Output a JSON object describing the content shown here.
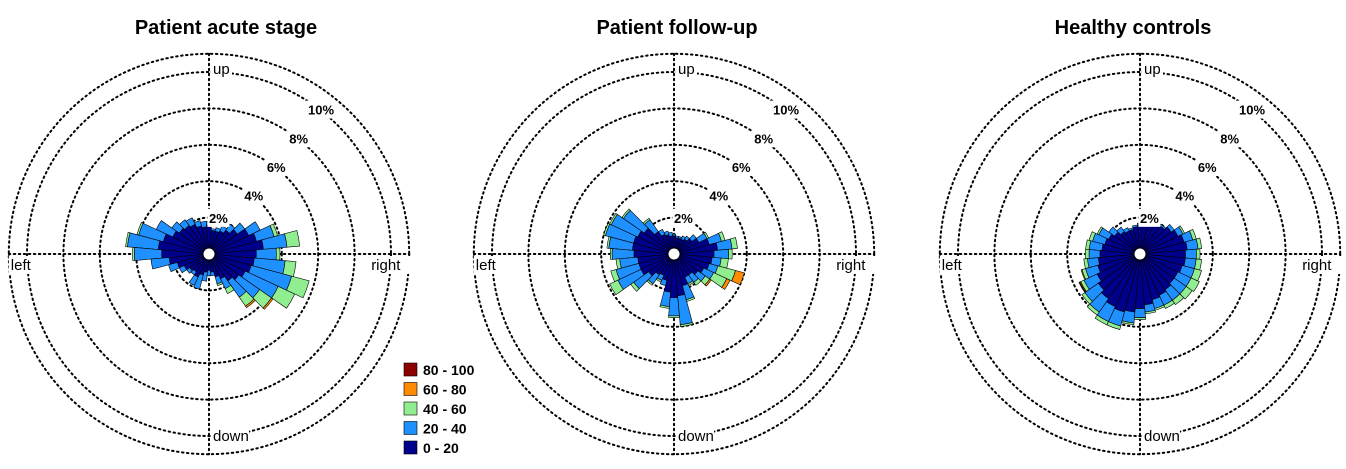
{
  "colors": {
    "c0_20": "#00008b",
    "c20_40": "#1e90ff",
    "c40_60": "#90ee90",
    "c60_80": "#ff8c00",
    "c80_100": "#8b0000"
  },
  "legend": [
    {
      "label": "80 - 100",
      "color": "#8b0000"
    },
    {
      "label": "60 - 80",
      "color": "#ff8c00"
    },
    {
      "label": "40 - 60",
      "color": "#90ee90"
    },
    {
      "label": "20 - 40",
      "color": "#1e90ff"
    },
    {
      "label": "0 - 20",
      "color": "#00008b"
    }
  ],
  "chart_data": [
    {
      "type": "polar-stacked-bar",
      "title": "Patient acute stage",
      "direction_labels": {
        "up": "up",
        "down": "down",
        "left": "left",
        "right": "right"
      },
      "ring_labels": [
        "2%",
        "4%",
        "6%",
        "8%",
        "10%"
      ],
      "rlim": [
        0,
        11
      ],
      "grid": true,
      "sector_deg": 10,
      "sectors": [
        {
          "angle": 0,
          "stack": [
            2.6,
            1.1,
            0.2,
            0,
            0
          ]
        },
        {
          "angle": 10,
          "stack": [
            3.0,
            1.3,
            0.7,
            0,
            0
          ]
        },
        {
          "angle": 20,
          "stack": [
            2.7,
            1.0,
            0.2,
            0,
            0
          ]
        },
        {
          "angle": 30,
          "stack": [
            2.4,
            0.7,
            0,
            0,
            0
          ]
        },
        {
          "angle": 40,
          "stack": [
            1.9,
            0.5,
            0,
            0,
            0
          ]
        },
        {
          "angle": 50,
          "stack": [
            1.6,
            0.4,
            0,
            0,
            0
          ]
        },
        {
          "angle": 60,
          "stack": [
            1.4,
            0.3,
            0,
            0,
            0
          ]
        },
        {
          "angle": 70,
          "stack": [
            1.3,
            0.2,
            0,
            0,
            0
          ]
        },
        {
          "angle": 80,
          "stack": [
            1.3,
            0.1,
            0,
            0,
            0
          ]
        },
        {
          "angle": 90,
          "stack": [
            1.6,
            0.2,
            0,
            0,
            0
          ]
        },
        {
          "angle": 100,
          "stack": [
            1.5,
            0.3,
            0,
            0,
            0
          ]
        },
        {
          "angle": 110,
          "stack": [
            1.6,
            0.3,
            0,
            0,
            0
          ]
        },
        {
          "angle": 120,
          "stack": [
            1.8,
            0.4,
            0,
            0,
            0
          ]
        },
        {
          "angle": 130,
          "stack": [
            1.9,
            0.4,
            0,
            0,
            0
          ]
        },
        {
          "angle": 140,
          "stack": [
            2.0,
            0.5,
            0,
            0,
            0
          ]
        },
        {
          "angle": 150,
          "stack": [
            2.2,
            1.0,
            0,
            0,
            0
          ]
        },
        {
          "angle": 160,
          "stack": [
            2.6,
            1.4,
            0.1,
            0,
            0
          ]
        },
        {
          "angle": 170,
          "stack": [
            2.8,
            1.7,
            0.1,
            0,
            0
          ]
        },
        {
          "angle": 180,
          "stack": [
            2.6,
            1.5,
            0.1,
            0,
            0
          ]
        },
        {
          "angle": 190,
          "stack": [
            2.2,
            1.0,
            0,
            0,
            0
          ]
        },
        {
          "angle": 200,
          "stack": [
            1.8,
            0.5,
            0,
            0,
            0
          ]
        },
        {
          "angle": 210,
          "stack": [
            1.5,
            0.3,
            0,
            0,
            0
          ]
        },
        {
          "angle": 220,
          "stack": [
            1.3,
            0.2,
            0,
            0,
            0
          ]
        },
        {
          "angle": 230,
          "stack": [
            1.2,
            0.2,
            0,
            0,
            0
          ]
        },
        {
          "angle": 240,
          "stack": [
            1.4,
            0.5,
            0,
            0,
            0
          ]
        },
        {
          "angle": 250,
          "stack": [
            1.2,
            0.8,
            0,
            0,
            0
          ]
        },
        {
          "angle": 260,
          "stack": [
            1.0,
            0.5,
            0,
            0,
            0
          ]
        },
        {
          "angle": 270,
          "stack": [
            0.9,
            0.3,
            0,
            0,
            0
          ]
        },
        {
          "angle": 280,
          "stack": [
            1.0,
            0.2,
            0,
            0,
            0
          ]
        },
        {
          "angle": 290,
          "stack": [
            1.3,
            0.4,
            0.1,
            0,
            0
          ]
        },
        {
          "angle": 300,
          "stack": [
            1.5,
            0.6,
            0.3,
            0,
            0
          ]
        },
        {
          "angle": 310,
          "stack": [
            1.8,
            1.1,
            0.6,
            0.1,
            0
          ]
        },
        {
          "angle": 320,
          "stack": [
            2.0,
            1.4,
            0.8,
            0.1,
            0
          ]
        },
        {
          "angle": 330,
          "stack": [
            2.2,
            2.0,
            1.0,
            0,
            0
          ]
        },
        {
          "angle": 340,
          "stack": [
            2.4,
            2.3,
            1.0,
            0,
            0
          ]
        },
        {
          "angle": 350,
          "stack": [
            2.5,
            1.7,
            0.6,
            0,
            0
          ]
        }
      ]
    },
    {
      "type": "polar-stacked-bar",
      "title": "Patient follow-up",
      "direction_labels": {
        "up": "up",
        "down": "down",
        "left": "left",
        "right": "right"
      },
      "ring_labels": [
        "2%",
        "4%",
        "6%",
        "8%",
        "10%"
      ],
      "rlim": [
        0,
        11
      ],
      "grid": true,
      "sector_deg": 10,
      "sectors": [
        {
          "angle": 0,
          "stack": [
            2.2,
            0.8,
            0.2,
            0,
            0
          ]
        },
        {
          "angle": 10,
          "stack": [
            2.4,
            0.8,
            0.3,
            0,
            0
          ]
        },
        {
          "angle": 20,
          "stack": [
            2.0,
            0.7,
            0.2,
            0,
            0
          ]
        },
        {
          "angle": 30,
          "stack": [
            1.5,
            0.5,
            0.1,
            0,
            0
          ]
        },
        {
          "angle": 40,
          "stack": [
            1.2,
            0.3,
            0,
            0,
            0
          ]
        },
        {
          "angle": 50,
          "stack": [
            1.0,
            0.2,
            0,
            0,
            0
          ]
        },
        {
          "angle": 60,
          "stack": [
            0.9,
            0.2,
            0,
            0,
            0
          ]
        },
        {
          "angle": 70,
          "stack": [
            0.9,
            0.1,
            0,
            0,
            0
          ]
        },
        {
          "angle": 80,
          "stack": [
            0.9,
            0.1,
            0,
            0,
            0
          ]
        },
        {
          "angle": 90,
          "stack": [
            1.0,
            0.1,
            0,
            0,
            0
          ]
        },
        {
          "angle": 100,
          "stack": [
            1.0,
            0.2,
            0,
            0,
            0
          ]
        },
        {
          "angle": 110,
          "stack": [
            1.1,
            0.2,
            0,
            0,
            0
          ]
        },
        {
          "angle": 120,
          "stack": [
            1.2,
            0.3,
            0,
            0,
            0
          ]
        },
        {
          "angle": 130,
          "stack": [
            1.5,
            0.8,
            0.1,
            0,
            0
          ]
        },
        {
          "angle": 140,
          "stack": [
            2.0,
            1.4,
            0.1,
            0,
            0
          ]
        },
        {
          "angle": 150,
          "stack": [
            2.2,
            1.6,
            0.1,
            0,
            0
          ]
        },
        {
          "angle": 160,
          "stack": [
            2.3,
            1.6,
            0.1,
            0,
            0
          ]
        },
        {
          "angle": 170,
          "stack": [
            2.3,
            1.3,
            0.1,
            0,
            0
          ]
        },
        {
          "angle": 180,
          "stack": [
            2.2,
            1.2,
            0.1,
            0,
            0
          ]
        },
        {
          "angle": 190,
          "stack": [
            2.0,
            1.0,
            0.2,
            0,
            0
          ]
        },
        {
          "angle": 200,
          "stack": [
            2.0,
            1.3,
            0.3,
            0,
            0
          ]
        },
        {
          "angle": 210,
          "stack": [
            2.0,
            1.4,
            0.5,
            0,
            0
          ]
        },
        {
          "angle": 220,
          "stack": [
            1.7,
            1.0,
            0.2,
            0,
            0
          ]
        },
        {
          "angle": 230,
          "stack": [
            1.4,
            0.6,
            0.1,
            0,
            0
          ]
        },
        {
          "angle": 240,
          "stack": [
            1.3,
            0.3,
            0.1,
            0,
            0
          ]
        },
        {
          "angle": 250,
          "stack": [
            1.5,
            0.3,
            0,
            0,
            0
          ]
        },
        {
          "angle": 260,
          "stack": [
            2.1,
            0.8,
            0.1,
            0,
            0
          ]
        },
        {
          "angle": 270,
          "stack": [
            2.4,
            1.0,
            0.1,
            0,
            0
          ]
        },
        {
          "angle": 280,
          "stack": [
            2.3,
            1.6,
            0.1,
            0,
            0
          ]
        },
        {
          "angle": 290,
          "stack": [
            1.8,
            0.8,
            0.1,
            0,
            0
          ]
        },
        {
          "angle": 300,
          "stack": [
            1.4,
            0.4,
            0.1,
            0,
            0
          ]
        },
        {
          "angle": 310,
          "stack": [
            1.4,
            0.5,
            0.2,
            0,
            0
          ]
        },
        {
          "angle": 320,
          "stack": [
            1.6,
            0.5,
            0.3,
            0.1,
            0
          ]
        },
        {
          "angle": 330,
          "stack": [
            1.8,
            0.6,
            0.8,
            0.2,
            0
          ]
        },
        {
          "angle": 340,
          "stack": [
            2.0,
            0.5,
            1.0,
            0.5,
            0
          ]
        },
        {
          "angle": 350,
          "stack": [
            2.1,
            0.5,
            0.4,
            0,
            0
          ]
        }
      ]
    },
    {
      "type": "polar-stacked-bar",
      "title": "Healthy controls",
      "direction_labels": {
        "up": "up",
        "down": "down",
        "left": "left",
        "right": "right"
      },
      "ring_labels": [
        "2%",
        "4%",
        "6%",
        "8%",
        "10%"
      ],
      "rlim": [
        0,
        11
      ],
      "grid": true,
      "sector_deg": 10,
      "sectors": [
        {
          "angle": 0,
          "stack": [
            2.5,
            0.6,
            0.2,
            0,
            0
          ]
        },
        {
          "angle": 10,
          "stack": [
            2.6,
            0.6,
            0.2,
            0,
            0
          ]
        },
        {
          "angle": 20,
          "stack": [
            2.5,
            0.5,
            0.2,
            0,
            0
          ]
        },
        {
          "angle": 30,
          "stack": [
            2.3,
            0.3,
            0.1,
            0,
            0
          ]
        },
        {
          "angle": 40,
          "stack": [
            2.1,
            0.2,
            0,
            0,
            0
          ]
        },
        {
          "angle": 50,
          "stack": [
            1.9,
            0.1,
            0,
            0,
            0
          ]
        },
        {
          "angle": 60,
          "stack": [
            1.8,
            0.1,
            0,
            0,
            0
          ]
        },
        {
          "angle": 70,
          "stack": [
            1.7,
            0.1,
            0,
            0,
            0
          ]
        },
        {
          "angle": 80,
          "stack": [
            1.6,
            0.1,
            0,
            0,
            0
          ]
        },
        {
          "angle": 90,
          "stack": [
            1.6,
            0.1,
            0,
            0,
            0
          ]
        },
        {
          "angle": 100,
          "stack": [
            1.5,
            0.1,
            0,
            0,
            0
          ]
        },
        {
          "angle": 110,
          "stack": [
            1.4,
            0.1,
            0,
            0,
            0
          ]
        },
        {
          "angle": 120,
          "stack": [
            1.4,
            0.2,
            0,
            0,
            0
          ]
        },
        {
          "angle": 130,
          "stack": [
            1.5,
            0.3,
            0,
            0,
            0
          ]
        },
        {
          "angle": 140,
          "stack": [
            1.7,
            0.4,
            0,
            0,
            0
          ]
        },
        {
          "angle": 150,
          "stack": [
            1.9,
            0.6,
            0.1,
            0,
            0
          ]
        },
        {
          "angle": 160,
          "stack": [
            2.0,
            0.7,
            0.2,
            0,
            0
          ]
        },
        {
          "angle": 170,
          "stack": [
            2.1,
            0.7,
            0.2,
            0,
            0
          ]
        },
        {
          "angle": 180,
          "stack": [
            2.2,
            0.6,
            0.2,
            0,
            0
          ]
        },
        {
          "angle": 190,
          "stack": [
            2.3,
            0.6,
            0.2,
            0,
            0
          ]
        },
        {
          "angle": 200,
          "stack": [
            2.4,
            0.7,
            0.2,
            0.05,
            0
          ]
        },
        {
          "angle": 210,
          "stack": [
            2.6,
            0.8,
            0.2,
            0.05,
            0.05
          ]
        },
        {
          "angle": 220,
          "stack": [
            2.8,
            0.9,
            0.2,
            0,
            0
          ]
        },
        {
          "angle": 230,
          "stack": [
            3.0,
            0.9,
            0.2,
            0,
            0
          ]
        },
        {
          "angle": 240,
          "stack": [
            3.2,
            0.9,
            0.2,
            0,
            0
          ]
        },
        {
          "angle": 250,
          "stack": [
            3.3,
            0.8,
            0.2,
            0,
            0
          ]
        },
        {
          "angle": 260,
          "stack": [
            3.2,
            0.6,
            0.1,
            0,
            0
          ]
        },
        {
          "angle": 270,
          "stack": [
            3.0,
            0.5,
            0.1,
            0,
            0
          ]
        },
        {
          "angle": 280,
          "stack": [
            2.8,
            0.4,
            0.1,
            0,
            0
          ]
        },
        {
          "angle": 290,
          "stack": [
            2.6,
            0.5,
            0.1,
            0,
            0
          ]
        },
        {
          "angle": 300,
          "stack": [
            2.5,
            0.6,
            0.2,
            0,
            0
          ]
        },
        {
          "angle": 310,
          "stack": [
            2.4,
            0.7,
            0.3,
            0,
            0
          ]
        },
        {
          "angle": 320,
          "stack": [
            2.3,
            0.8,
            0.4,
            0,
            0
          ]
        },
        {
          "angle": 330,
          "stack": [
            2.3,
            0.8,
            0.5,
            0,
            0
          ]
        },
        {
          "angle": 340,
          "stack": [
            2.4,
            0.7,
            0.4,
            0,
            0
          ]
        },
        {
          "angle": 350,
          "stack": [
            2.5,
            0.6,
            0.3,
            0,
            0
          ]
        }
      ]
    }
  ]
}
